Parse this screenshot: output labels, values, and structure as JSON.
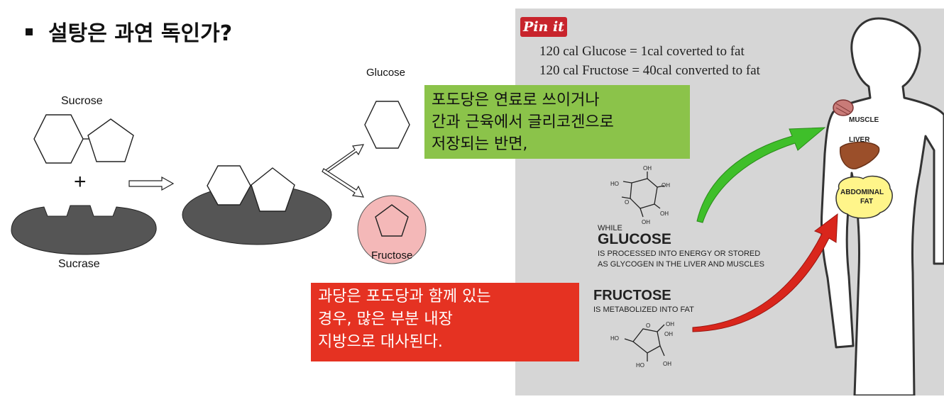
{
  "title": "설탕은 과연 독인가?",
  "diagram": {
    "sucrose_label": "Sucrose",
    "plus_sign": "+",
    "sucrase_label": "Sucrase",
    "glucose_label": "Glucose",
    "fructose_label": "Fructose"
  },
  "notes": {
    "green_lines": [
      "포도당은 연료로 쓰이거나",
      "간과 근육에서 글리코겐으로",
      "저장되는 반면,"
    ],
    "red_lines": [
      "과당은 포도당과 함께 있는",
      "경우, 많은 부분 내장",
      "지방으로 대사된다."
    ]
  },
  "infographic": {
    "pin_label": "Pin it",
    "cal_line_1": "120 cal Glucose = 1cal coverted to fat",
    "cal_line_2": "120 cal Fructose = 40cal converted to fat",
    "glucose_prefix": "WHILE",
    "glucose_heading": "GLUCOSE",
    "glucose_desc_1": "IS PROCESSED INTO ENERGY OR STORED",
    "glucose_desc_2": "AS GLYCOGEN IN THE LIVER AND MUSCLES",
    "fructose_heading": "FRUCTOSE",
    "fructose_desc": "IS METABOLIZED INTO FAT",
    "organ_muscle": "MUSCLE",
    "organ_liver": "LIVER",
    "organ_fat_1": "ABDOMINAL",
    "organ_fat_2": "FAT",
    "colors": {
      "green_note": "#8bc34a",
      "red_note": "#e53222",
      "green_arrow": "#3fbf2a",
      "red_arrow": "#d9261c",
      "fructose_circle": "#f4b8b8"
    }
  }
}
